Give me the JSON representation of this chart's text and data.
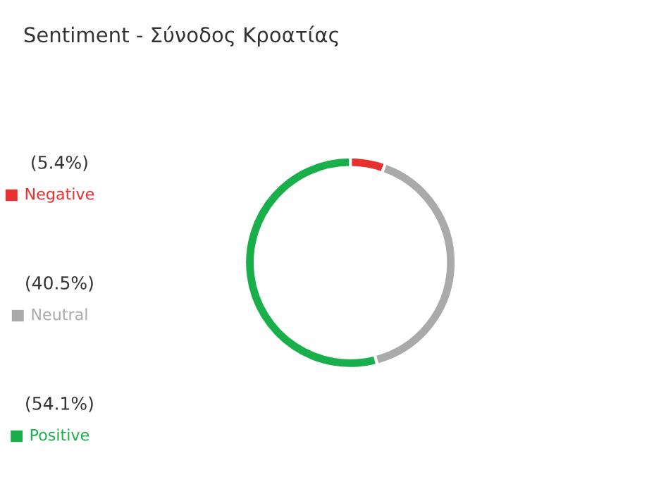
{
  "chart_data": {
    "type": "donut",
    "title": "Sentiment - Σύνοδος Κροατίας",
    "categories": [
      "Negative",
      "Neutral",
      "Positive"
    ],
    "values": [
      5.4,
      40.5,
      54.1
    ],
    "value_labels": [
      "(5.4%)",
      "(40.5%)",
      "(54.1%)"
    ],
    "colors": [
      "#e8312f",
      "#aaaaaa",
      "#19b04b"
    ],
    "legend": "left"
  }
}
